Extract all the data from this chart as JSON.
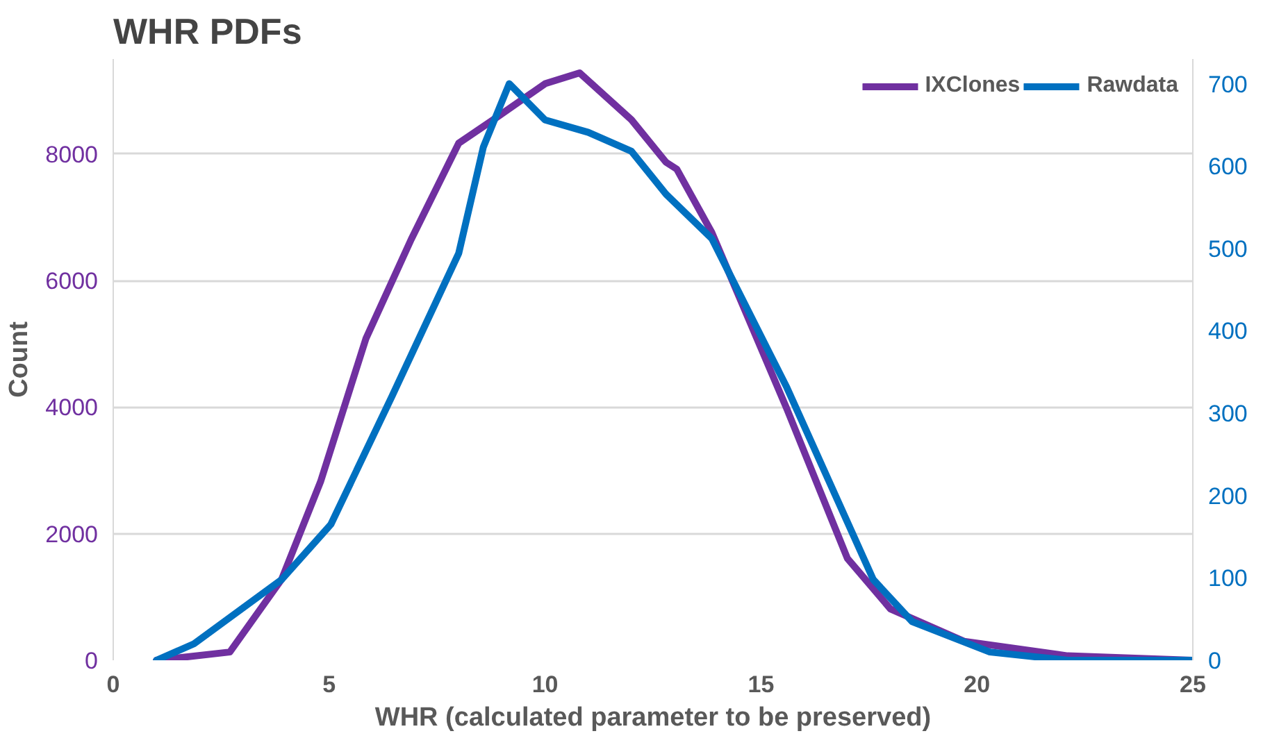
{
  "chart_data": {
    "type": "line",
    "title": "WHR PDFs",
    "xlabel": "WHR (calculated parameter to be preserved)",
    "ylabel": "Count",
    "xlim": [
      0,
      25
    ],
    "xticks": [
      0,
      5,
      10,
      15,
      20,
      25
    ],
    "ylim": [
      0,
      9500
    ],
    "yticks": [
      0,
      2000,
      4000,
      6000,
      8000
    ],
    "y2lim": [
      0,
      730
    ],
    "y2ticks": [
      0,
      100,
      200,
      300,
      400,
      500,
      600,
      700
    ],
    "grid": "y",
    "legend": "top right",
    "marker": "none",
    "line_style": "solid",
    "series": [
      {
        "name": "IXClones",
        "color": "#7030a0",
        "x": [
          1.0,
          2.7,
          3.9,
          4.8,
          5.85,
          6.9,
          8.0,
          8.8,
          10.0,
          10.8,
          12.0,
          12.8,
          13.05,
          13.86,
          15.6,
          17.0,
          18.0,
          19.7,
          22.1,
          25
        ],
        "values": [
          0,
          130,
          1280,
          2820,
          5080,
          6650,
          8170,
          8540,
          9110,
          9280,
          8540,
          7870,
          7760,
          6760,
          3970,
          1610,
          810,
          300,
          70,
          0
        ]
      },
      {
        "name": "Rawdata",
        "color": "#0070c0",
        "axis": "y2",
        "x": [
          1.0,
          1.87,
          3.9,
          5.04,
          6.45,
          8.0,
          8.57,
          9.17,
          10.0,
          11.0,
          12.0,
          12.8,
          13.86,
          15.6,
          17.6,
          18.5,
          20.3,
          22.1,
          25
        ],
        "values": [
          0,
          20,
          98,
          165,
          320,
          494,
          623,
          700,
          656,
          641,
          618,
          566,
          512,
          331,
          98,
          47,
          10,
          0,
          0
        ]
      }
    ]
  }
}
